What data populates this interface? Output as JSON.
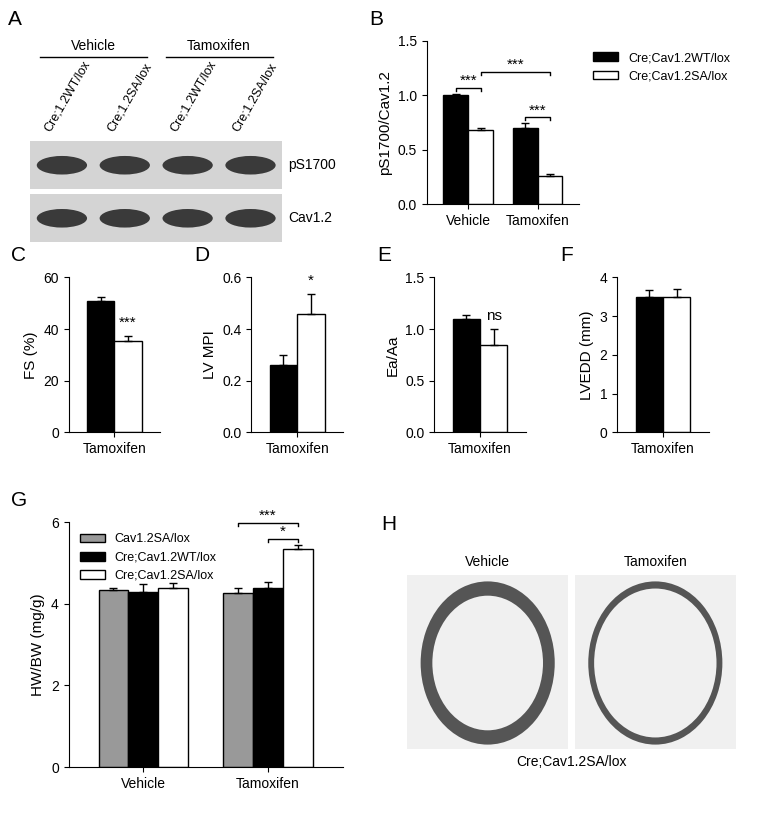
{
  "chart_data": [
    {
      "panel": "B",
      "type": "bar",
      "y_label": "pS1700/Cav1.2",
      "categories": [
        "Vehicle",
        "Tamoxifen"
      ],
      "series": [
        {
          "name": "Cre;Cav1.2WT/lox",
          "color": "#000000",
          "values": [
            1.0,
            0.7
          ],
          "errors": [
            0.01,
            0.04
          ]
        },
        {
          "name": "Cre;Cav1.2SA/lox",
          "color": "#ffffff",
          "values": [
            0.68,
            0.26
          ],
          "errors": [
            0.02,
            0.02
          ]
        }
      ],
      "ylim": [
        0,
        1.5
      ],
      "yticks": [
        {
          "value": 0,
          "label": "0.0"
        },
        0.5,
        {
          "value": 1,
          "label": "1.0"
        },
        1.5
      ],
      "legend": "upper right",
      "significance": [
        {
          "text": "***",
          "pair": [
            {
              "category": "Vehicle",
              "series": "Cre;Cav1.2WT/lox"
            },
            {
              "category": "Vehicle",
              "series": "Cre;Cav1.2SA/lox"
            }
          ]
        },
        {
          "text": "***",
          "pair": [
            {
              "category": "Vehicle",
              "series": "Cre;Cav1.2SA/lox"
            },
            {
              "category": "Tamoxifen",
              "series": "Cre;Cav1.2SA/lox"
            }
          ]
        },
        {
          "text": "***",
          "pair": [
            {
              "category": "Tamoxifen",
              "series": "Cre;Cav1.2WT/lox"
            },
            {
              "category": "Tamoxifen",
              "series": "Cre;Cav1.2SA/lox"
            }
          ]
        }
      ]
    },
    {
      "panel": "C",
      "type": "bar",
      "y_label": "FS (%)",
      "categories": [
        "Tamoxifen"
      ],
      "series": [
        {
          "name": "Cre;Cav1.2WT/lox",
          "color": "#000000",
          "values": [
            51
          ],
          "errors": [
            1.5
          ]
        },
        {
          "name": "Cre;Cav1.2SA/lox",
          "color": "#ffffff",
          "values": [
            35.5
          ],
          "errors": [
            2
          ]
        }
      ],
      "ylim": [
        0,
        60
      ],
      "yticks": [
        0,
        20,
        40,
        60
      ],
      "significance": [
        {
          "text": "***",
          "category": "Tamoxifen",
          "series": "Cre;Cav1.2SA/lox"
        }
      ]
    },
    {
      "panel": "D",
      "type": "bar",
      "y_label": "LV MPI",
      "categories": [
        "Tamoxifen"
      ],
      "series": [
        {
          "name": "Cre;Cav1.2WT/lox",
          "color": "#000000",
          "values": [
            0.26
          ],
          "errors": [
            0.04
          ]
        },
        {
          "name": "Cre;Cav1.2SA/lox",
          "color": "#ffffff",
          "values": [
            0.46
          ],
          "errors": [
            0.075
          ]
        }
      ],
      "ylim": [
        0,
        0.6
      ],
      "yticks": [
        {
          "value": 0,
          "label": "0.0"
        },
        0.2,
        0.4,
        0.6
      ],
      "significance": [
        {
          "text": "*",
          "category": "Tamoxifen",
          "series": "Cre;Cav1.2SA/lox"
        }
      ]
    },
    {
      "panel": "E",
      "type": "bar",
      "y_label": "Ea/Aa",
      "categories": [
        "Tamoxifen"
      ],
      "series": [
        {
          "name": "Cre;Cav1.2WT/lox",
          "color": "#000000",
          "values": [
            1.1
          ],
          "errors": [
            0.04
          ]
        },
        {
          "name": "Cre;Cav1.2SA/lox",
          "color": "#ffffff",
          "values": [
            0.85
          ],
          "errors": [
            0.15
          ]
        }
      ],
      "ylim": [
        0,
        1.5
      ],
      "yticks": [
        {
          "value": 0,
          "label": "0.0"
        },
        0.5,
        {
          "value": 1,
          "label": "1.0"
        },
        1.5
      ],
      "significance": [
        {
          "text": "ns",
          "category": "Tamoxifen",
          "series": "Cre;Cav1.2SA/lox"
        }
      ]
    },
    {
      "panel": "F",
      "type": "bar",
      "y_label": "LVEDD (mm)",
      "categories": [
        "Tamoxifen"
      ],
      "series": [
        {
          "name": "Cre;Cav1.2WT/lox",
          "color": "#000000",
          "values": [
            3.5
          ],
          "errors": [
            0.18
          ]
        },
        {
          "name": "Cre;Cav1.2SA/lox",
          "color": "#ffffff",
          "values": [
            3.5
          ],
          "errors": [
            0.2
          ]
        }
      ],
      "ylim": [
        0,
        4
      ],
      "yticks": [
        0,
        1,
        2,
        3,
        4
      ]
    },
    {
      "panel": "G",
      "type": "bar",
      "y_label": "HW/BW (mg/g)",
      "categories": [
        "Vehicle",
        "Tamoxifen"
      ],
      "series": [
        {
          "name": "Cav1.2SA/lox",
          "color": "#999999",
          "values": [
            4.33,
            4.27
          ],
          "errors": [
            0.05,
            0.12
          ]
        },
        {
          "name": "Cre;Cav1.2WT/lox",
          "color": "#000000",
          "values": [
            4.3,
            4.38
          ],
          "errors": [
            0.18,
            0.15
          ]
        },
        {
          "name": "Cre;Cav1.2SA/lox",
          "color": "#ffffff",
          "values": [
            4.38,
            5.35
          ],
          "errors": [
            0.13,
            0.1
          ]
        }
      ],
      "ylim": [
        0,
        6
      ],
      "yticks": [
        0,
        2,
        4,
        6
      ],
      "legend": "upper left",
      "significance": [
        {
          "text": "***",
          "pair": [
            {
              "category": "Tamoxifen",
              "series": "Cav1.2SA/lox"
            },
            {
              "category": "Tamoxifen",
              "series": "Cre;Cav1.2SA/lox"
            }
          ]
        },
        {
          "text": "*",
          "pair": [
            {
              "category": "Tamoxifen",
              "series": "Cre;Cav1.2WT/lox"
            },
            {
              "category": "Tamoxifen",
              "series": "Cre;Cav1.2SA/lox"
            }
          ]
        }
      ]
    }
  ],
  "blot": {
    "panel": "A",
    "groups": [
      {
        "label": "Vehicle",
        "lanes": [
          "Cre;1.2WT/lox",
          "Cre;1.2SA/lox"
        ]
      },
      {
        "label": "Tamoxifen",
        "lanes": [
          "Cre;1.2WT/lox",
          "Cre;1.2SA/lox"
        ]
      }
    ],
    "bands": [
      "pS1700",
      "Cav1.2"
    ]
  },
  "histology": {
    "panel": "H",
    "sections": [
      "Vehicle",
      "Tamoxifen"
    ],
    "caption": "Cre;Cav1.2SA/lox"
  }
}
